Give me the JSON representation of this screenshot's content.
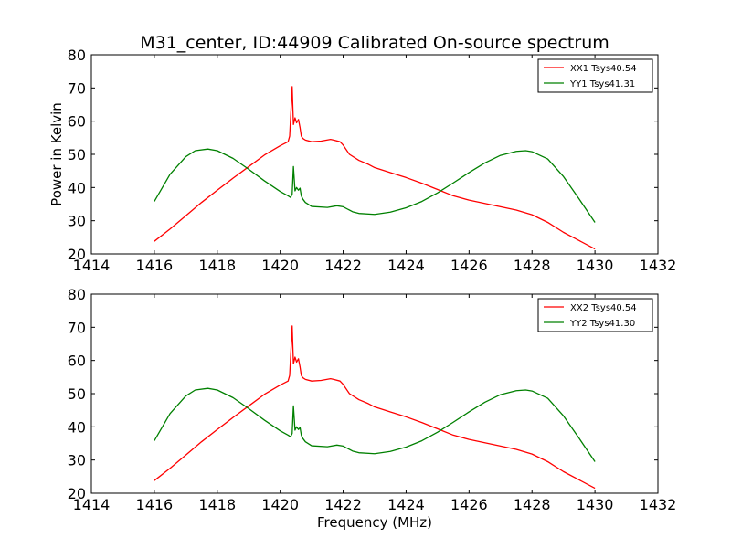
{
  "figure": {
    "title": "M31_center, ID:44909 Calibrated On-source spectrum",
    "xlabel": "Frequency (MHz)"
  },
  "chart_data": [
    {
      "type": "line",
      "title": "M31_center, ID:44909 Calibrated On-source spectrum",
      "xlabel": "",
      "ylabel": "Power in Kelvin",
      "xlim": [
        1414,
        1432
      ],
      "ylim": [
        20,
        80
      ],
      "xticks": [
        1414,
        1416,
        1418,
        1420,
        1422,
        1424,
        1426,
        1428,
        1430,
        1432
      ],
      "yticks": [
        20,
        30,
        40,
        50,
        60,
        70,
        80
      ],
      "grid": false,
      "legend_position": "top-right",
      "series": [
        {
          "name": "XX1 Tsys40.54",
          "color": "#ff0000",
          "x": [
            1416.0,
            1416.5,
            1417.0,
            1417.5,
            1418.0,
            1418.5,
            1419.0,
            1419.5,
            1420.0,
            1420.25,
            1420.3,
            1420.38,
            1420.42,
            1420.47,
            1420.52,
            1420.58,
            1420.63,
            1420.67,
            1420.72,
            1420.8,
            1421.0,
            1421.3,
            1421.6,
            1421.7,
            1421.9,
            1422.0,
            1422.2,
            1422.5,
            1422.8,
            1423.0,
            1423.5,
            1424.0,
            1424.5,
            1425.0,
            1425.5,
            1426.0,
            1426.5,
            1427.0,
            1427.5,
            1428.0,
            1428.5,
            1429.0,
            1429.5,
            1430.0
          ],
          "y": [
            23.8,
            27.5,
            31.5,
            35.5,
            39.2,
            42.8,
            46.3,
            49.8,
            52.6,
            53.8,
            55.5,
            70.4,
            59.0,
            61.0,
            59.5,
            60.5,
            58.0,
            55.5,
            54.8,
            54.3,
            53.8,
            54.0,
            54.5,
            54.3,
            53.8,
            52.8,
            50.0,
            48.2,
            47.0,
            46.0,
            44.5,
            43.0,
            41.3,
            39.4,
            37.5,
            36.2,
            35.2,
            34.2,
            33.2,
            31.8,
            29.5,
            26.5,
            24.0,
            21.5
          ]
        },
        {
          "name": "YY1 Tsys41.31",
          "color": "#008000",
          "x": [
            1416.0,
            1416.5,
            1417.0,
            1417.3,
            1417.7,
            1418.0,
            1418.5,
            1419.0,
            1419.5,
            1420.0,
            1420.25,
            1420.33,
            1420.38,
            1420.42,
            1420.47,
            1420.52,
            1420.58,
            1420.63,
            1420.67,
            1420.72,
            1420.8,
            1421.0,
            1421.5,
            1421.8,
            1422.0,
            1422.3,
            1422.5,
            1423.0,
            1423.5,
            1424.0,
            1424.5,
            1425.0,
            1425.5,
            1426.0,
            1426.5,
            1427.0,
            1427.5,
            1427.8,
            1428.0,
            1428.5,
            1429.0,
            1429.5,
            1430.0
          ],
          "y": [
            35.8,
            44.0,
            49.3,
            51.1,
            51.6,
            51.1,
            48.8,
            45.5,
            42.0,
            38.8,
            37.5,
            37.0,
            38.0,
            46.3,
            39.0,
            40.0,
            39.2,
            39.8,
            37.5,
            36.5,
            35.5,
            34.3,
            34.0,
            34.5,
            34.2,
            32.7,
            32.2,
            31.9,
            32.6,
            33.9,
            35.8,
            38.4,
            41.4,
            44.5,
            47.4,
            49.7,
            50.9,
            51.1,
            50.8,
            48.6,
            43.3,
            36.5,
            29.5
          ]
        }
      ]
    },
    {
      "type": "line",
      "title": "",
      "xlabel": "Frequency (MHz)",
      "ylabel": "",
      "xlim": [
        1414,
        1432
      ],
      "ylim": [
        20,
        80
      ],
      "xticks": [
        1414,
        1416,
        1418,
        1420,
        1422,
        1424,
        1426,
        1428,
        1430,
        1432
      ],
      "yticks": [
        20,
        30,
        40,
        50,
        60,
        70,
        80
      ],
      "grid": false,
      "legend_position": "top-right",
      "series": [
        {
          "name": "XX2 Tsys40.54",
          "color": "#ff0000",
          "x": [
            1416.0,
            1416.5,
            1417.0,
            1417.5,
            1418.0,
            1418.5,
            1419.0,
            1419.5,
            1420.0,
            1420.25,
            1420.3,
            1420.38,
            1420.42,
            1420.47,
            1420.52,
            1420.58,
            1420.63,
            1420.67,
            1420.72,
            1420.8,
            1421.0,
            1421.3,
            1421.6,
            1421.7,
            1421.9,
            1422.0,
            1422.2,
            1422.5,
            1422.8,
            1423.0,
            1423.5,
            1424.0,
            1424.5,
            1425.0,
            1425.5,
            1426.0,
            1426.5,
            1427.0,
            1427.5,
            1428.0,
            1428.5,
            1429.0,
            1429.5,
            1430.0
          ],
          "y": [
            23.8,
            27.5,
            31.5,
            35.5,
            39.2,
            42.8,
            46.3,
            49.8,
            52.6,
            53.8,
            55.5,
            70.4,
            59.0,
            61.0,
            59.5,
            60.5,
            58.0,
            55.5,
            54.8,
            54.3,
            53.8,
            54.0,
            54.5,
            54.3,
            53.8,
            52.8,
            50.0,
            48.2,
            47.0,
            46.0,
            44.5,
            43.0,
            41.3,
            39.4,
            37.5,
            36.2,
            35.2,
            34.2,
            33.2,
            31.8,
            29.5,
            26.5,
            24.0,
            21.5
          ]
        },
        {
          "name": "YY2 Tsys41.30",
          "color": "#008000",
          "x": [
            1416.0,
            1416.5,
            1417.0,
            1417.3,
            1417.7,
            1418.0,
            1418.5,
            1419.0,
            1419.5,
            1420.0,
            1420.25,
            1420.33,
            1420.38,
            1420.42,
            1420.47,
            1420.52,
            1420.58,
            1420.63,
            1420.67,
            1420.72,
            1420.8,
            1421.0,
            1421.5,
            1421.8,
            1422.0,
            1422.3,
            1422.5,
            1423.0,
            1423.5,
            1424.0,
            1424.5,
            1425.0,
            1425.5,
            1426.0,
            1426.5,
            1427.0,
            1427.5,
            1427.8,
            1428.0,
            1428.5,
            1429.0,
            1429.5,
            1430.0
          ],
          "y": [
            35.8,
            44.0,
            49.3,
            51.1,
            51.6,
            51.1,
            48.8,
            45.5,
            42.0,
            38.8,
            37.5,
            37.0,
            38.0,
            46.3,
            39.0,
            40.0,
            39.2,
            39.8,
            37.5,
            36.5,
            35.5,
            34.3,
            34.0,
            34.5,
            34.2,
            32.7,
            32.2,
            31.9,
            32.6,
            33.9,
            35.8,
            38.4,
            41.4,
            44.5,
            47.4,
            49.7,
            50.9,
            51.1,
            50.8,
            48.6,
            43.3,
            36.5,
            29.5
          ]
        }
      ]
    }
  ]
}
